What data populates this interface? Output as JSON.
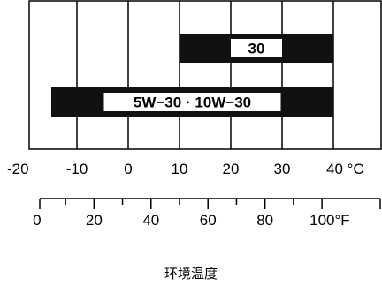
{
  "chart_data": {
    "type": "bar",
    "orientation": "horizontal-range",
    "title": "",
    "xlabel": "环境温度",
    "celsius_axis": {
      "unit": "°C",
      "range": [
        -20,
        40
      ],
      "ticks": [
        -20,
        -10,
        0,
        10,
        20,
        30,
        40
      ],
      "tick_labels": [
        "-20",
        "-10",
        "0",
        "10",
        "20",
        "30",
        "40 °C"
      ]
    },
    "fahrenheit_axis": {
      "unit": "°F",
      "range": [
        -4,
        104
      ],
      "labeled_ticks": [
        0,
        20,
        40,
        60,
        80,
        100
      ],
      "tick_labels": [
        "0",
        "20",
        "40",
        "60",
        "80",
        "100°F"
      ],
      "minor_step": 10
    },
    "grid": true,
    "bands": [
      {
        "label": "30",
        "min_c": 10,
        "max_c": 40
      },
      {
        "label": "5W−30 · 10W−30",
        "min_c": -15,
        "max_c": 40
      }
    ],
    "colors": {
      "band": "#111111",
      "label_box": "#ffffff",
      "grid": "#000000"
    }
  }
}
